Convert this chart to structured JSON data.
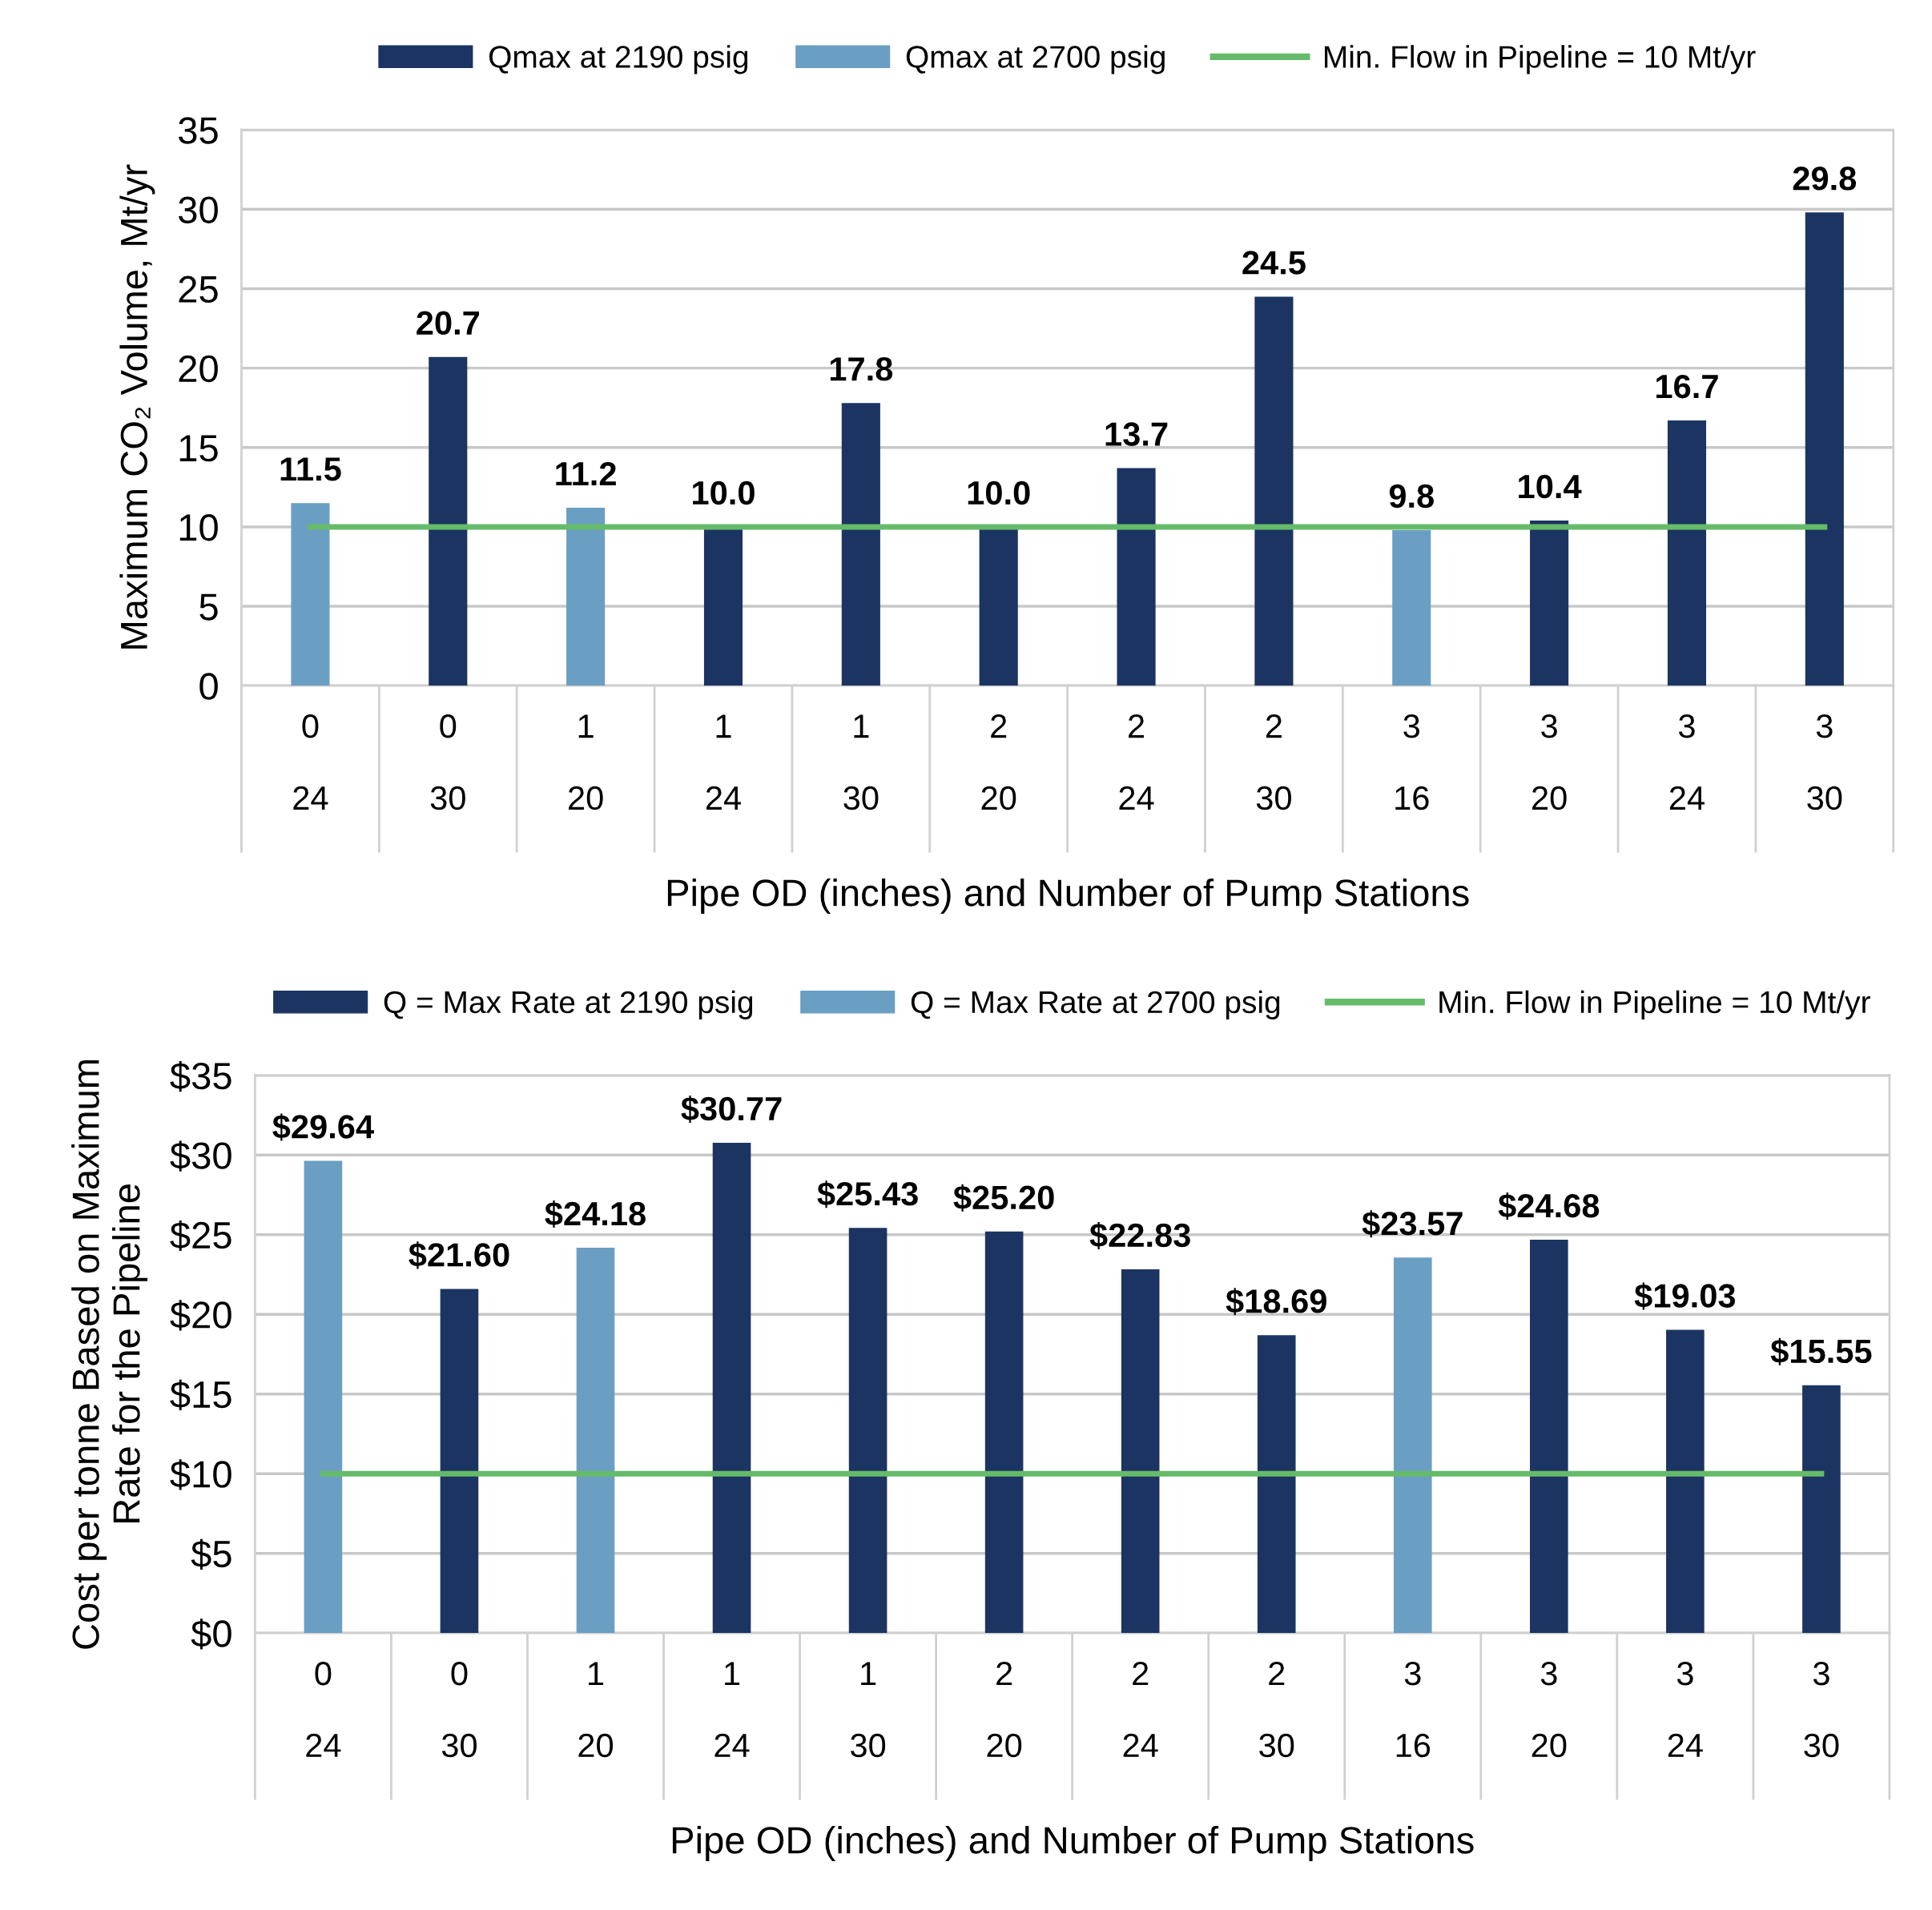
{
  "chart_data": [
    {
      "type": "bar",
      "ylabel": "Maximum CO₂ Volume, Mt/yr",
      "xlabel": "Pipe OD (inches) and Number of Pump Stations",
      "categories": [
        "0\n\n24",
        "0\n\n30",
        "1\n\n20",
        "1\n\n24",
        "1\n\n30",
        "2\n\n20",
        "2\n\n24",
        "2\n\n30",
        "3\n\n16",
        "3\n\n20",
        "3\n\n24",
        "3\n\n30"
      ],
      "series": [
        {
          "name": "Qmax at 2190 psig",
          "color": "#1c3461",
          "values": [
            null,
            20.7,
            null,
            10.0,
            17.8,
            10.0,
            13.7,
            24.5,
            null,
            10.4,
            16.7,
            29.8
          ],
          "value_labels": [
            null,
            "20.7",
            null,
            "10.0",
            "17.8",
            "10.0",
            "13.7",
            "24.5",
            null,
            "10.4",
            "16.7",
            "29.8"
          ]
        },
        {
          "name": "Qmax at 2700 psig",
          "color": "#6a9fc3",
          "values": [
            11.5,
            null,
            11.2,
            null,
            null,
            null,
            null,
            null,
            9.8,
            null,
            null,
            null
          ],
          "value_labels": [
            "11.5",
            null,
            "11.2",
            null,
            null,
            null,
            null,
            null,
            "9.8",
            null,
            null,
            null
          ]
        },
        {
          "name": "Min. Flow in Pipeline = 10 Mt/yr",
          "type": "line",
          "color": "#66bb6a",
          "values": [
            10,
            10,
            10,
            10,
            10,
            10,
            10,
            10,
            10,
            10,
            10,
            10
          ]
        }
      ],
      "ylim": [
        0,
        35
      ],
      "yticks": [
        0,
        5,
        10,
        15,
        20,
        25,
        30,
        35
      ],
      "grid": "y",
      "legend": "top"
    },
    {
      "type": "bar",
      "ylabel": "Cost per tonne Based on Maximum\nRate for the Pipeline",
      "xlabel": "Pipe OD (inches) and Number of Pump Stations",
      "categories": [
        "0\n\n24",
        "0\n\n30",
        "1\n\n20",
        "1\n\n24",
        "1\n\n30",
        "2\n\n20",
        "2\n\n24",
        "2\n\n30",
        "3\n\n16",
        "3\n\n20",
        "3\n\n24",
        "3\n\n30"
      ],
      "series": [
        {
          "name": "Q = Max Rate at 2190 psig",
          "color": "#1c3461",
          "values": [
            null,
            21.6,
            null,
            30.77,
            25.43,
            25.2,
            22.83,
            18.69,
            null,
            24.68,
            19.03,
            15.55
          ],
          "value_labels": [
            null,
            "$21.60",
            null,
            "$30.77",
            "$25.43",
            "$25.20",
            "$22.83",
            "$18.69",
            null,
            "$24.68",
            "$19.03",
            "$15.55"
          ]
        },
        {
          "name": "Q = Max Rate at 2700 psig",
          "color": "#6a9fc3",
          "values": [
            29.64,
            null,
            24.18,
            null,
            null,
            null,
            null,
            null,
            23.57,
            null,
            null,
            null
          ],
          "value_labels": [
            "$29.64",
            null,
            "$24.18",
            null,
            null,
            null,
            null,
            null,
            "$23.57",
            null,
            null,
            null
          ]
        },
        {
          "name": "Min. Flow in Pipeline = 10 Mt/yr",
          "type": "line",
          "color": "#66bb6a",
          "values": [
            10,
            10,
            10,
            10,
            10,
            10,
            10,
            10,
            10,
            10,
            10,
            10
          ]
        }
      ],
      "ylim": [
        0,
        35
      ],
      "yticks": [
        {
          "value": 0,
          "label": "$0"
        },
        {
          "value": 5,
          "label": "$5"
        },
        {
          "value": 10,
          "label": "$10"
        },
        {
          "value": 15,
          "label": "$15"
        },
        {
          "value": 20,
          "label": "$20"
        },
        {
          "value": 25,
          "label": "$25"
        },
        {
          "value": 30,
          "label": "$30"
        },
        {
          "value": 35,
          "label": "$35"
        }
      ],
      "grid": "y",
      "legend": "top"
    }
  ]
}
